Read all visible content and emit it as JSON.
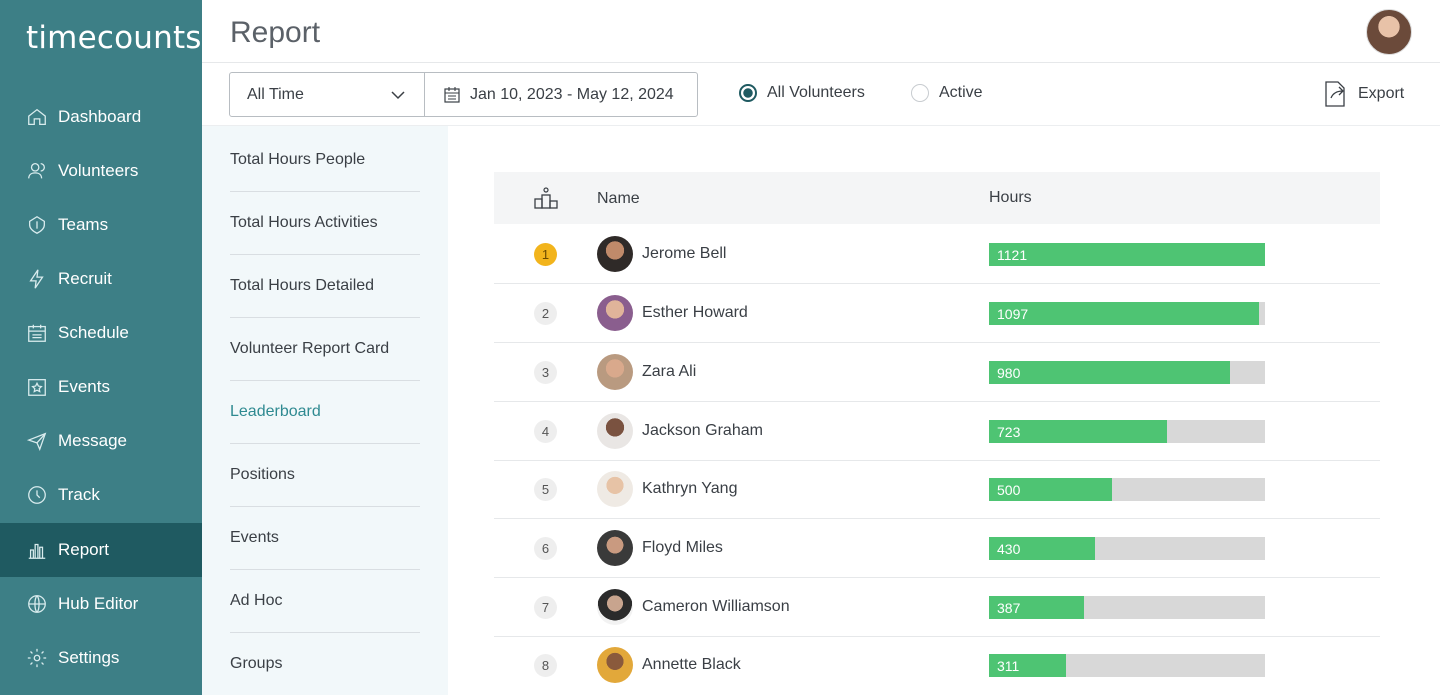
{
  "app": {
    "logo": "timecounts"
  },
  "sidebar": {
    "items": [
      {
        "label": "Dashboard",
        "icon": "home-icon"
      },
      {
        "label": "Volunteers",
        "icon": "users-icon"
      },
      {
        "label": "Teams",
        "icon": "teams-icon"
      },
      {
        "label": "Recruit",
        "icon": "bolt-icon"
      },
      {
        "label": "Schedule",
        "icon": "calendar-icon"
      },
      {
        "label": "Events",
        "icon": "star-calendar-icon"
      },
      {
        "label": "Message",
        "icon": "paper-plane-icon"
      },
      {
        "label": "Track",
        "icon": "clock-icon"
      },
      {
        "label": "Report",
        "icon": "chart-icon",
        "active": true
      },
      {
        "label": "Hub Editor",
        "icon": "globe-icon"
      },
      {
        "label": "Settings",
        "icon": "gear-icon"
      }
    ]
  },
  "header": {
    "title": "Report"
  },
  "toolbar": {
    "period": "All Time",
    "date_range": "Jan 10, 2023 - May 12, 2024",
    "radio_all": "All Volunteers",
    "radio_active": "Active",
    "export": "Export"
  },
  "reports": [
    {
      "label": "Total Hours People"
    },
    {
      "label": "Total Hours Activities"
    },
    {
      "label": "Total Hours Detailed"
    },
    {
      "label": "Volunteer Report Card"
    },
    {
      "label": "Leaderboard",
      "active": true
    },
    {
      "label": "Positions"
    },
    {
      "label": "Events"
    },
    {
      "label": "Ad Hoc"
    },
    {
      "label": "Groups"
    }
  ],
  "table": {
    "col_name": "Name",
    "col_hours": "Hours",
    "max_hours": 1121,
    "rows": [
      {
        "rank": "1",
        "name": "Jerome Bell",
        "hours": "1121",
        "value": 1121
      },
      {
        "rank": "2",
        "name": "Esther Howard",
        "hours": "1097",
        "value": 1097
      },
      {
        "rank": "3",
        "name": "Zara Ali",
        "hours": "980",
        "value": 980
      },
      {
        "rank": "4",
        "name": "Jackson Graham",
        "hours": "723",
        "value": 723
      },
      {
        "rank": "5",
        "name": "Kathryn Yang",
        "hours": "500",
        "value": 500
      },
      {
        "rank": "6",
        "name": "Floyd Miles",
        "hours": "430",
        "value": 430
      },
      {
        "rank": "7",
        "name": "Cameron Williamson",
        "hours": "387",
        "value": 387
      },
      {
        "rank": "8",
        "name": "Annette Black",
        "hours": "311",
        "value": 311
      }
    ]
  },
  "colors": {
    "sidebar": "#3d7f86",
    "sidebar_active": "#1f5a61",
    "bar": "#4ec473",
    "bar_track": "#d8d8d8",
    "gold_rank": "#f2b41c",
    "link_active": "#2f8a91"
  }
}
